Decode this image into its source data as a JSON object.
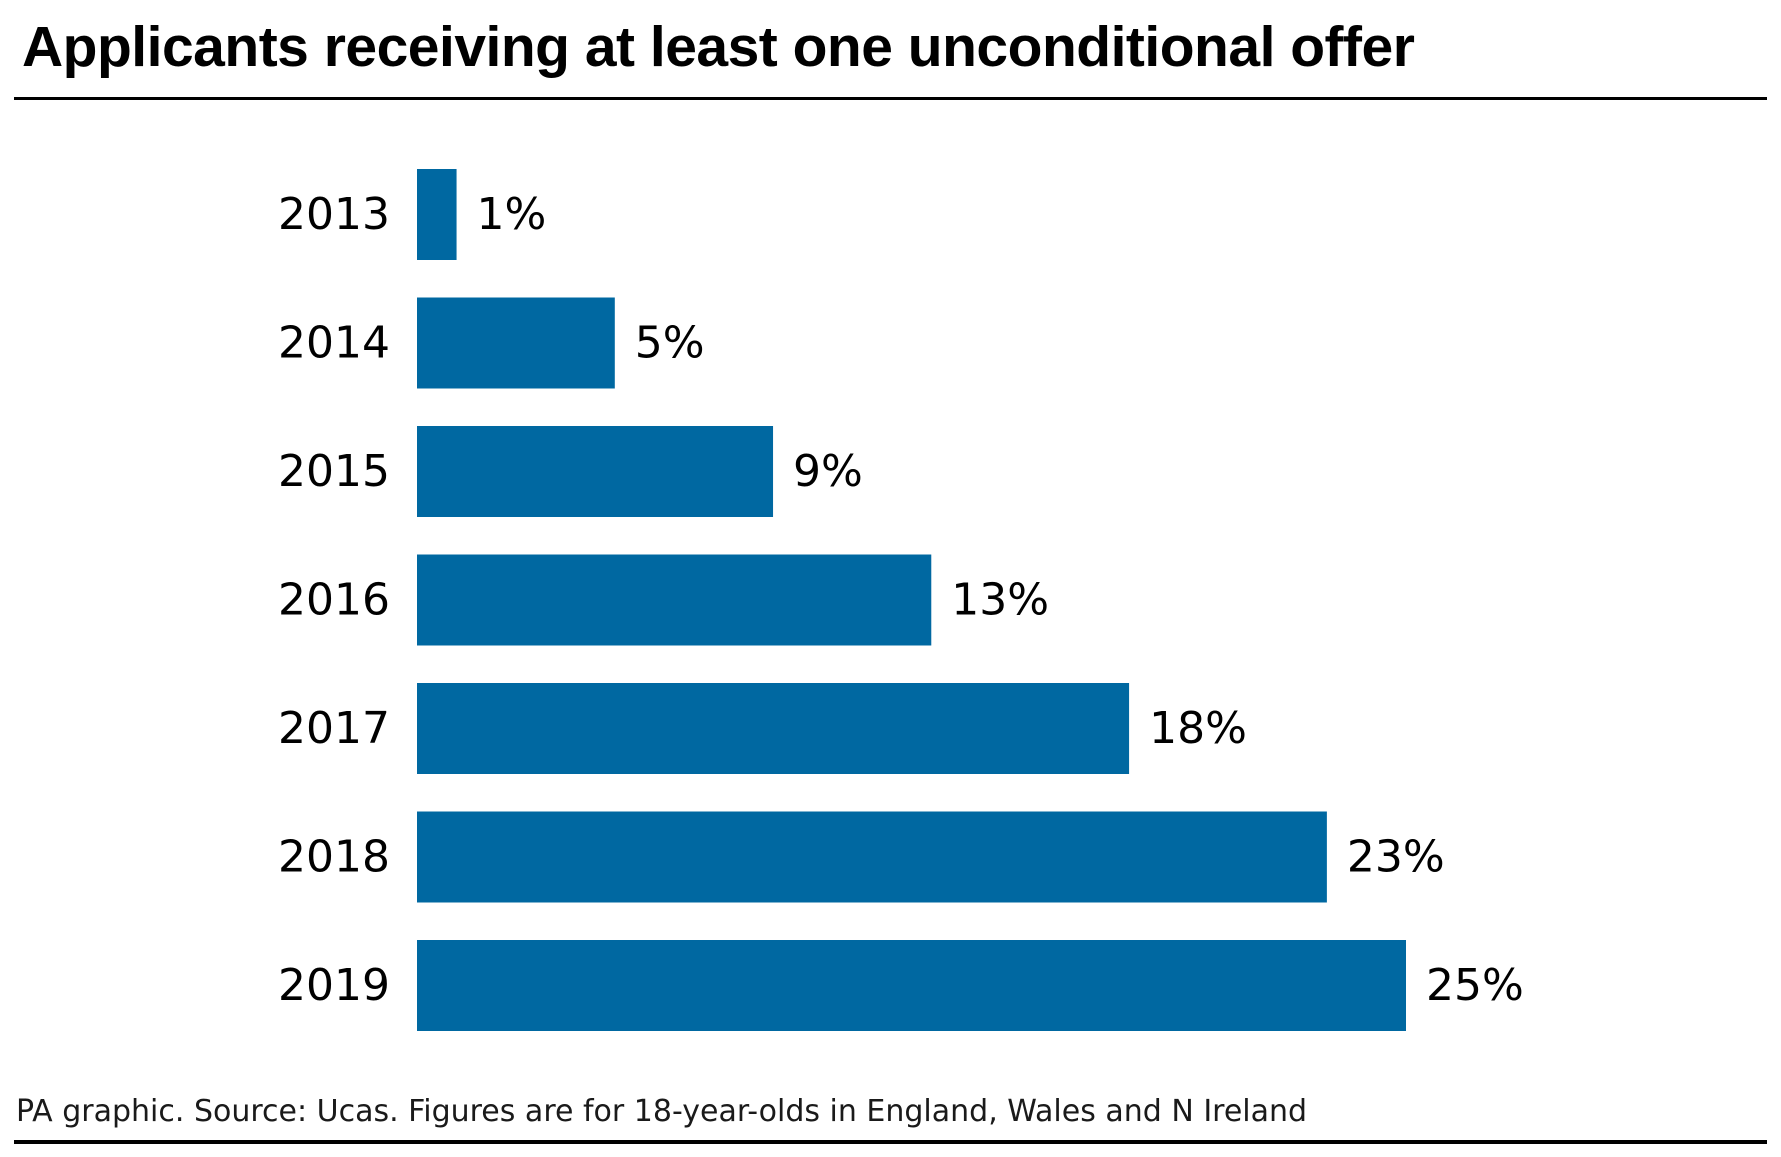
{
  "chart_data": {
    "type": "bar",
    "orientation": "horizontal",
    "title": "Applicants receiving at least one unconditional offer",
    "categories": [
      "2013",
      "2014",
      "2015",
      "2016",
      "2017",
      "2018",
      "2019"
    ],
    "values": [
      1,
      5,
      9,
      13,
      18,
      23,
      25
    ],
    "value_labels": [
      "1%",
      "5%",
      "9%",
      "13%",
      "18%",
      "23%",
      "25%"
    ],
    "unit": "%",
    "xlim": [
      0,
      25
    ],
    "grid": false,
    "legend": "none",
    "bar_color": "#0068a1"
  },
  "footer": {
    "source": "PA graphic. Source: Ucas. Figures are for 18-year-olds in England, Wales and N Ireland"
  }
}
